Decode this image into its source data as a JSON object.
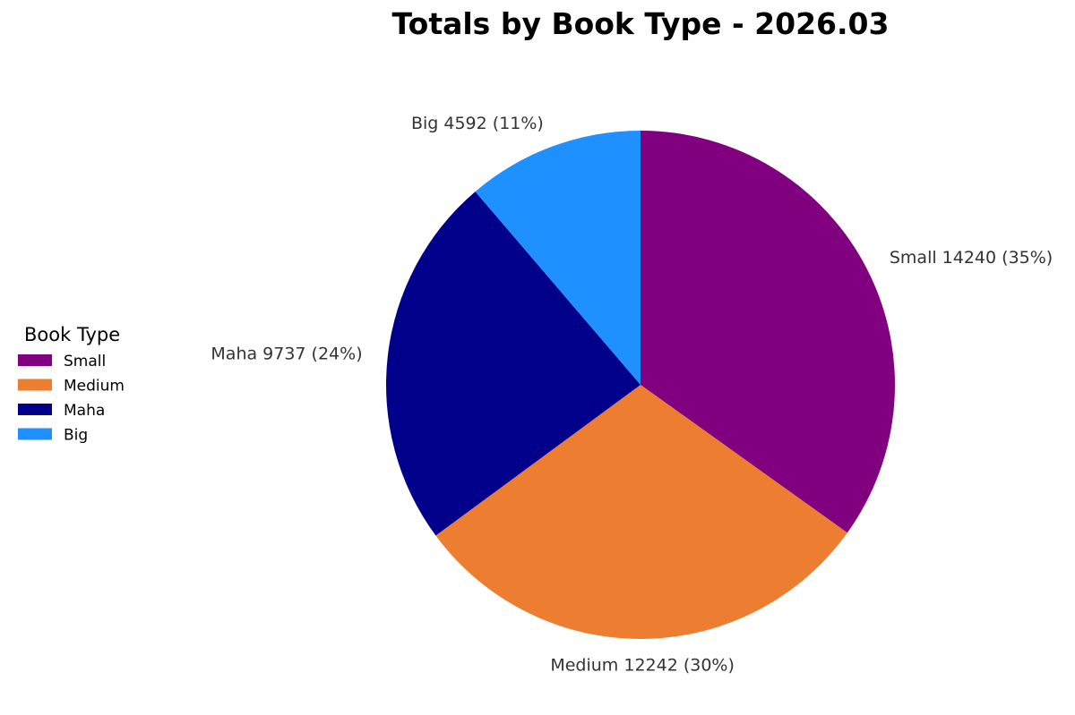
{
  "chart_data": {
    "type": "pie",
    "title": "Totals by Book Type - 2026.03",
    "categories": [
      "Small",
      "Medium",
      "Maha",
      "Big"
    ],
    "values": [
      14240,
      12242,
      9737,
      4592
    ],
    "percent_labels": [
      "35%",
      "30%",
      "24%",
      "11%"
    ],
    "slice_labels": [
      "Small 14240 (35%)",
      "Medium 12242 (30%)",
      "Maha 9737 (24%)",
      "Big 4592 (11%)"
    ],
    "colors": [
      "#800080",
      "#ED7D31",
      "#00008B",
      "#1E90FF"
    ],
    "start_angle": "top",
    "direction": "clockwise",
    "legend": {
      "title": "Book Type",
      "placement": "center-left",
      "entries": [
        "Small",
        "Medium",
        "Maha",
        "Big"
      ]
    }
  }
}
